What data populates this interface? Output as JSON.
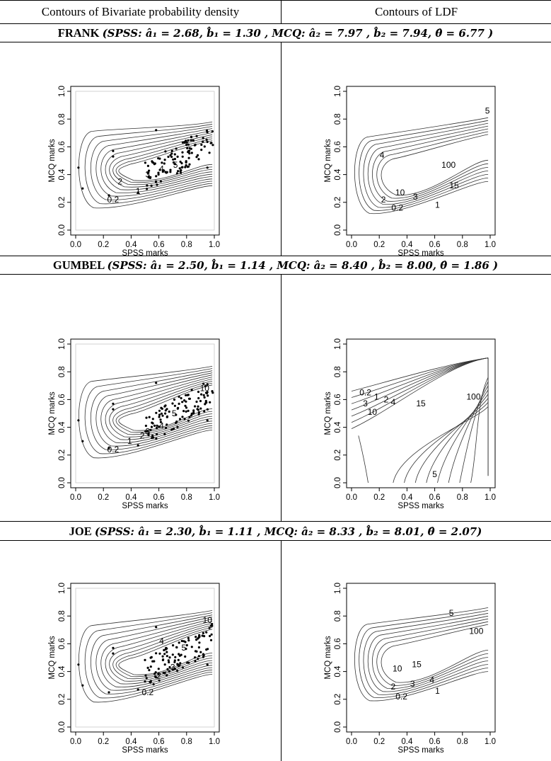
{
  "table": {
    "col_headers": [
      "Contours of Bivariate probability density",
      "Contours of LDF"
    ],
    "sections": [
      {
        "copula": "FRANK",
        "param_text": "(SPSS: â₁ = 2.68, b̂₁ = 1.30 , MCQ: â₂ = 7.97 , b̂₂ = 7.94, θ̂ = 6.77 )"
      },
      {
        "copula": "GUMBEL",
        "param_text": "(SPSS: â₁ = 2.50, b̂₁ = 1.14 , MCQ: â₂ = 8.40 , b̂₂ = 8.00, θ̂ = 1.86 )"
      },
      {
        "copula": "JOE",
        "param_text": "(SPSS: â₁ = 2.30, b̂₁ = 1.11 , MCQ: â₂ = 8.33 , b̂₂ = 8.01, θ̂ = 2.07)"
      }
    ]
  },
  "chart_data": [
    {
      "type": "contour",
      "copula": "FRANK",
      "panel": "density",
      "xlabel": "SPSS marks",
      "ylabel": "MCQ marks",
      "xlim": [
        0,
        1
      ],
      "ylim": [
        0,
        1
      ],
      "ticks": [
        "0.0",
        "0.2",
        "0.4",
        "0.6",
        "0.8",
        "1.0"
      ],
      "contour_labels": [
        "0.2",
        "1",
        "2",
        "3",
        "4",
        "5"
      ],
      "scatter": true
    },
    {
      "type": "contour",
      "copula": "FRANK",
      "panel": "ldf",
      "xlabel": "SPSS marks",
      "ylabel": "MCQ marks",
      "xlim": [
        0,
        1
      ],
      "ylim": [
        0,
        1
      ],
      "ticks": [
        "0.0",
        "0.2",
        "0.4",
        "0.6",
        "0.8",
        "1.0"
      ],
      "contour_labels": [
        "0.2",
        "1",
        "2",
        "3",
        "4",
        "5",
        "10",
        "15",
        "100"
      ],
      "scatter": false
    },
    {
      "type": "contour",
      "copula": "GUMBEL",
      "panel": "density",
      "xlabel": "SPSS marks",
      "ylabel": "MCQ marks",
      "xlim": [
        0,
        1
      ],
      "ylim": [
        0,
        1
      ],
      "ticks": [
        "0.0",
        "0.2",
        "0.4",
        "0.6",
        "0.8",
        "1.0"
      ],
      "contour_labels": [
        "0.2",
        "1",
        "2",
        "3",
        "4",
        "5",
        "10"
      ],
      "scatter": true
    },
    {
      "type": "contour",
      "copula": "GUMBEL",
      "panel": "ldf",
      "xlabel": "SPSS marks",
      "ylabel": "MCQ marks",
      "xlim": [
        0,
        1
      ],
      "ylim": [
        0,
        1
      ],
      "ticks": [
        "0.0",
        "0.2",
        "0.4",
        "0.6",
        "0.8",
        "1.0"
      ],
      "contour_labels": [
        "0.2",
        "1",
        "2",
        "3",
        "4",
        "5",
        "10",
        "15",
        "100"
      ],
      "scatter": false
    },
    {
      "type": "contour",
      "copula": "JOE",
      "panel": "density",
      "xlabel": "SPSS marks",
      "ylabel": "MCQ marks",
      "xlim": [
        0,
        1
      ],
      "ylim": [
        0,
        1
      ],
      "ticks": [
        "0.0",
        "0.2",
        "0.4",
        "0.6",
        "0.8",
        "1.0"
      ],
      "contour_labels": [
        "0.2",
        "2",
        "3",
        "4",
        "5",
        "10"
      ],
      "scatter": true
    },
    {
      "type": "contour",
      "copula": "JOE",
      "panel": "ldf",
      "xlabel": "SPSS marks",
      "ylabel": "MCQ marks",
      "xlim": [
        0,
        1
      ],
      "ylim": [
        0,
        1
      ],
      "ticks": [
        "0.0",
        "0.2",
        "0.4",
        "0.6",
        "0.8",
        "1.0"
      ],
      "contour_labels": [
        "0.2",
        "1",
        "2",
        "3",
        "4",
        "5",
        "10",
        "15",
        "100"
      ],
      "scatter": false
    }
  ]
}
